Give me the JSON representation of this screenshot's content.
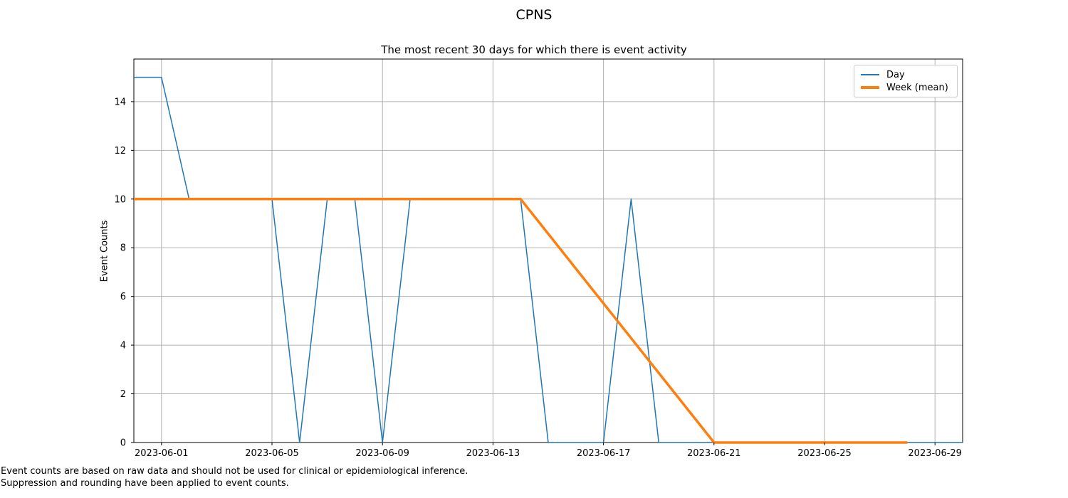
{
  "figure": {
    "title": "CPNS",
    "subtitle": "The most recent 30 days for which there is event activity",
    "y_axis_label": "Event Counts",
    "footer_line1": "Event counts are based on raw data and should not be used for clinical or epidemiological inference.",
    "footer_line2": "Suppression and rounding have been applied to event counts."
  },
  "legend": {
    "items": [
      {
        "label": "Day",
        "color": "#1f77b4",
        "thickness": 2
      },
      {
        "label": "Week (mean)",
        "color": "#ff7f0e",
        "thickness": 3.5
      }
    ]
  },
  "colors": {
    "day_line": "#1f77b4",
    "week_line": "#ff7f0e",
    "grid": "#b0b0b0",
    "spine": "#000000",
    "background": "#ffffff",
    "text": "#000000"
  },
  "chart_data": {
    "type": "line",
    "title": "CPNS",
    "subtitle": "The most recent 30 days for which there is event activity",
    "xlabel": "",
    "ylabel": "Event Counts",
    "grid": true,
    "legend_position": "upper right",
    "x_dates": [
      "2023-05-31",
      "2023-06-01",
      "2023-06-02",
      "2023-06-03",
      "2023-06-04",
      "2023-06-05",
      "2023-06-06",
      "2023-06-07",
      "2023-06-08",
      "2023-06-09",
      "2023-06-10",
      "2023-06-11",
      "2023-06-12",
      "2023-06-13",
      "2023-06-14",
      "2023-06-15",
      "2023-06-16",
      "2023-06-17",
      "2023-06-18",
      "2023-06-19",
      "2023-06-20",
      "2023-06-21",
      "2023-06-22",
      "2023-06-23",
      "2023-06-24",
      "2023-06-25",
      "2023-06-26",
      "2023-06-27",
      "2023-06-28",
      "2023-06-29",
      "2023-06-30"
    ],
    "series": [
      {
        "name": "Day",
        "color": "#1f77b4",
        "line_width": 1.5,
        "values": [
          15,
          15,
          10,
          10,
          10,
          10,
          0,
          10,
          10,
          0,
          10,
          10,
          10,
          10,
          10,
          0,
          0,
          0,
          10,
          0,
          0,
          0,
          0,
          0,
          0,
          0,
          0,
          0,
          0,
          0,
          0
        ]
      },
      {
        "name": "Week (mean)",
        "color": "#ff7f0e",
        "line_width": 3.5,
        "x": [
          "2023-05-31",
          "2023-06-07",
          "2023-06-14",
          "2023-06-21",
          "2023-06-28"
        ],
        "values": [
          10,
          10,
          10,
          0,
          0
        ]
      }
    ],
    "x_tick_labels": [
      "2023-06-01",
      "2023-06-05",
      "2023-06-09",
      "2023-06-13",
      "2023-06-17",
      "2023-06-21",
      "2023-06-25",
      "2023-06-29"
    ],
    "y_ticks": [
      0,
      2,
      4,
      6,
      8,
      10,
      12,
      14
    ],
    "ylim": [
      0,
      15.75
    ]
  }
}
